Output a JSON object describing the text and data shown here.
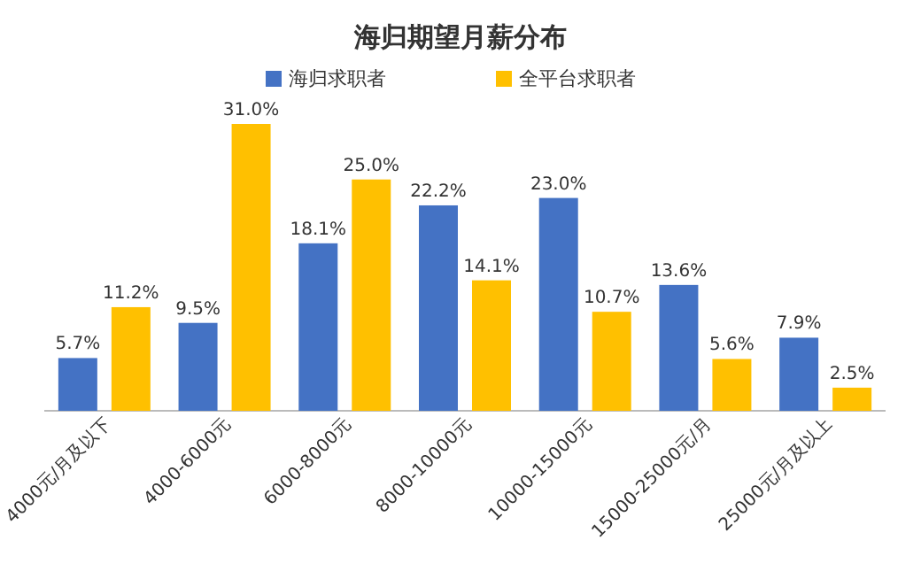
{
  "chart_data": {
    "type": "bar",
    "title": "海归期望月薪分布",
    "categories": [
      "4000元/月及以下",
      "4000-6000元",
      "6000-8000元",
      "8000-10000元",
      "10000-15000元",
      "15000-25000元/月",
      "25000元/月及以上"
    ],
    "series": [
      {
        "name": "海归求职者",
        "color": "#4472c4",
        "values": [
          5.7,
          9.5,
          18.1,
          22.2,
          23.0,
          13.6,
          7.9
        ],
        "value_labels": [
          "5.7%",
          "9.5%",
          "18.1%",
          "22.2%",
          "23.0%",
          "13.6%",
          "7.9%"
        ]
      },
      {
        "name": "全平台求职者",
        "color": "#ffc000",
        "values": [
          11.2,
          31.0,
          25.0,
          14.1,
          10.7,
          5.6,
          2.5
        ],
        "value_labels": [
          "11.2%",
          "31.0%",
          "25.0%",
          "14.1%",
          "10.7%",
          "5.6%",
          "2.5%"
        ]
      }
    ],
    "legend": "top"
  }
}
